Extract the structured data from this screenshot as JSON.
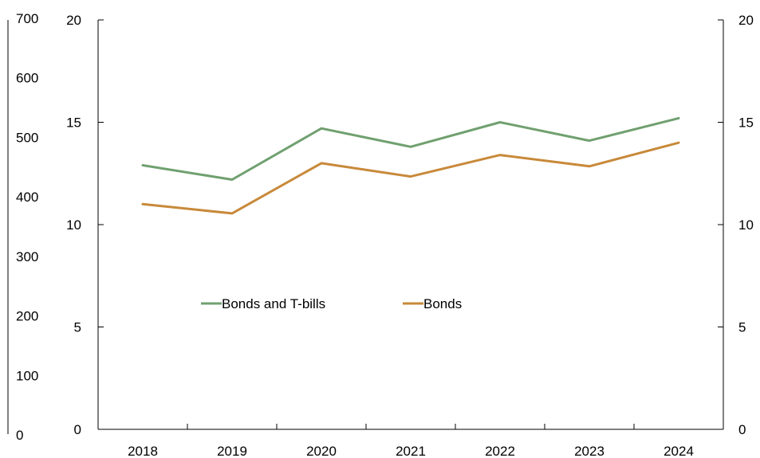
{
  "chart_data": {
    "type": "line",
    "title": "",
    "xlabel": "",
    "ylabel": "",
    "categories": [
      "2018",
      "2019",
      "2020",
      "2021",
      "2022",
      "2023",
      "2024"
    ],
    "series": [
      {
        "name": "Bonds and T-bills",
        "color": "#70a070",
        "axis": "right",
        "values": [
          12.9,
          12.2,
          14.7,
          13.8,
          15.0,
          14.1,
          15.2
        ]
      },
      {
        "name": "Bonds",
        "color": "#c8893a",
        "axis": "right",
        "values": [
          11.0,
          10.55,
          13.0,
          12.35,
          13.4,
          12.85,
          14.0
        ]
      }
    ],
    "y_left_outer": {
      "ylim": [
        0,
        700
      ],
      "ticks": [
        "0",
        "100",
        "200",
        "300",
        "400",
        "500",
        "600",
        "700"
      ]
    },
    "y_left_inner": {
      "ylim": [
        0,
        20
      ],
      "ticks": [
        "0",
        "5",
        "10",
        "15",
        "20"
      ]
    },
    "y_right": {
      "ylim": [
        0,
        20
      ],
      "ticks": [
        "0",
        "5",
        "10",
        "15",
        "20"
      ]
    },
    "grid": false,
    "legend": {
      "placement": "center-left",
      "entries": [
        "Bonds and T-bills",
        "Bonds"
      ]
    }
  }
}
